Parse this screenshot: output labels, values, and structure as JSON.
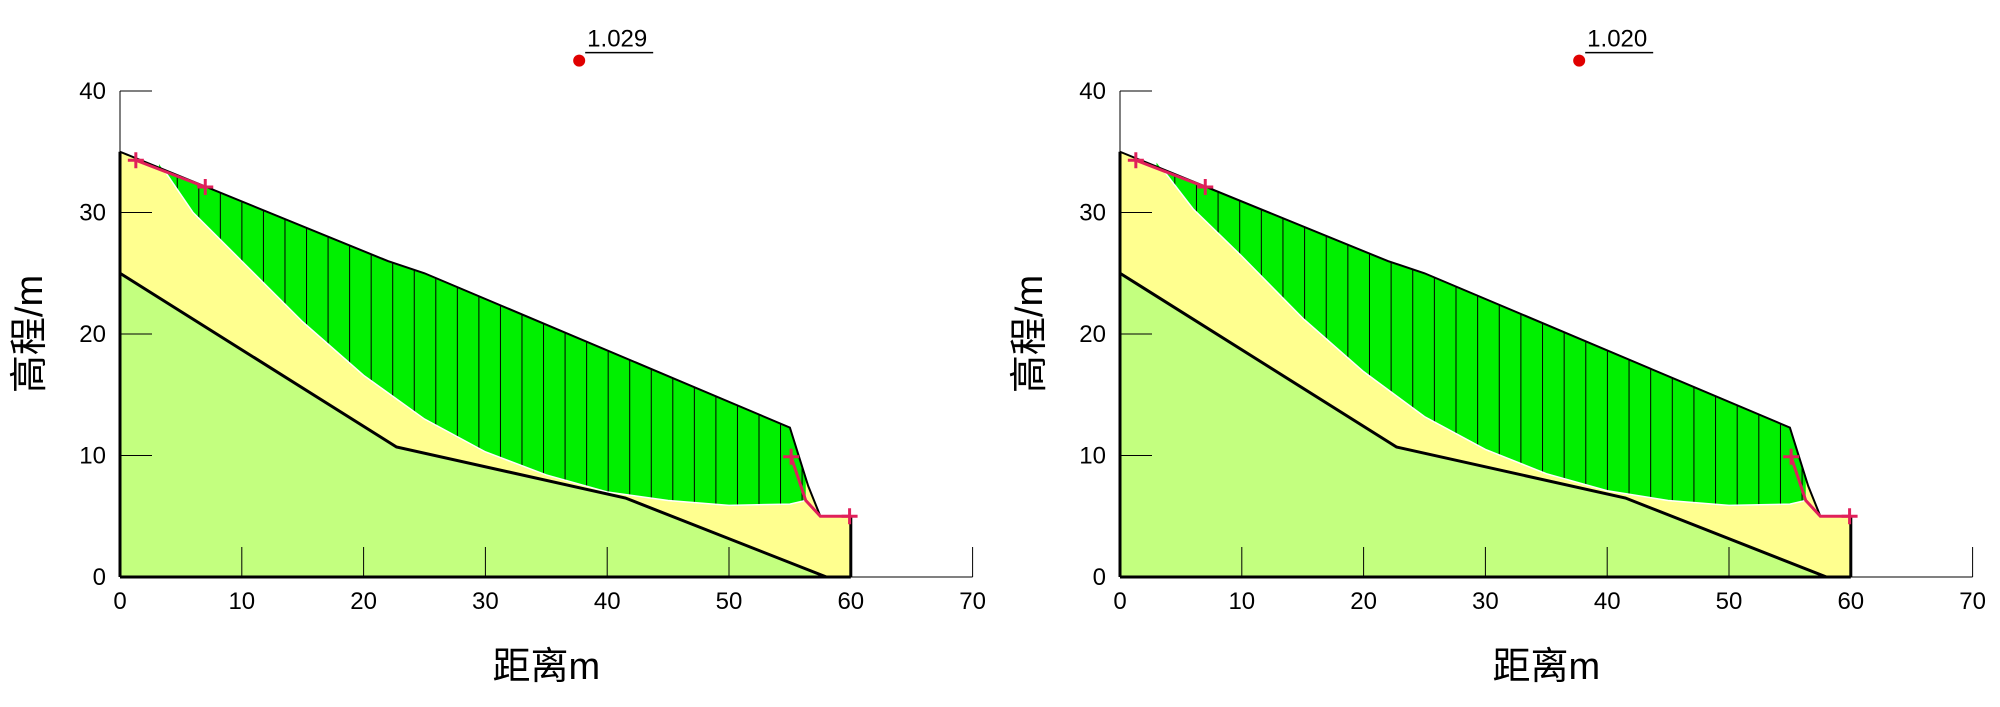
{
  "colors": {
    "lower_layer": "#c3ff7f",
    "upper_layer": "#ffff8f",
    "slip_mass": "#00f000",
    "slice_line": "#000000",
    "boundary": "#000000",
    "fos_point": "#e00000",
    "marker": "#e0205a"
  },
  "chart_data": [
    {
      "type": "slope-stability",
      "xlabel": "距离m",
      "ylabel": "高程/m",
      "xlim": [
        0,
        70
      ],
      "ylim": [
        0,
        40
      ],
      "xticks": [
        0,
        10,
        20,
        30,
        40,
        50,
        60,
        70
      ],
      "yticks": [
        0,
        10,
        20,
        30,
        40
      ],
      "factor_of_safety": "1.029",
      "critical_center": {
        "x": 37.7,
        "y": 42.5
      },
      "ground_surface": [
        [
          0,
          35
        ],
        [
          22,
          26
        ],
        [
          25,
          25
        ],
        [
          55,
          12.3
        ],
        [
          56.5,
          7.5
        ],
        [
          57.5,
          5
        ],
        [
          60,
          5
        ],
        [
          60,
          0
        ],
        [
          0,
          0
        ]
      ],
      "layer_boundary": [
        [
          0,
          25
        ],
        [
          22.7,
          10.7
        ],
        [
          41.5,
          6.5
        ],
        [
          58,
          0
        ]
      ],
      "slip_surface": [
        [
          3.2,
          34.1
        ],
        [
          6,
          30
        ],
        [
          10,
          26
        ],
        [
          15,
          21
        ],
        [
          20,
          16.6
        ],
        [
          25,
          13
        ],
        [
          30,
          10.3
        ],
        [
          35,
          8.4
        ],
        [
          40,
          7
        ],
        [
          45,
          6.3
        ],
        [
          50,
          5.9
        ],
        [
          55,
          6
        ],
        [
          56.3,
          6.3
        ]
      ],
      "slice_count": 30,
      "markers": [
        [
          1.3,
          34.3
        ],
        [
          7,
          32.1
        ],
        [
          55.1,
          9.9
        ],
        [
          59.9,
          5
        ]
      ]
    },
    {
      "type": "slope-stability",
      "xlabel": "距离m",
      "ylabel": "高程/m",
      "xlim": [
        0,
        70
      ],
      "ylim": [
        0,
        40
      ],
      "xticks": [
        0,
        10,
        20,
        30,
        40,
        50,
        60,
        70
      ],
      "yticks": [
        0,
        10,
        20,
        30,
        40
      ],
      "factor_of_safety": "1.020",
      "critical_center": {
        "x": 37.7,
        "y": 42.5
      },
      "ground_surface": [
        [
          0,
          35
        ],
        [
          22,
          26
        ],
        [
          25,
          25
        ],
        [
          55,
          12.3
        ],
        [
          56.5,
          7.5
        ],
        [
          57.5,
          5
        ],
        [
          60,
          5
        ],
        [
          60,
          0
        ],
        [
          0,
          0
        ]
      ],
      "layer_boundary": [
        [
          0,
          25
        ],
        [
          22.7,
          10.7
        ],
        [
          41.5,
          6.5
        ],
        [
          58,
          0
        ]
      ],
      "slip_surface": [
        [
          3.0,
          34.2
        ],
        [
          6,
          30.3
        ],
        [
          10,
          26.4
        ],
        [
          15,
          21.3
        ],
        [
          20,
          16.9
        ],
        [
          25,
          13.2
        ],
        [
          30,
          10.5
        ],
        [
          35,
          8.5
        ],
        [
          40,
          7.1
        ],
        [
          45,
          6.3
        ],
        [
          50,
          5.9
        ],
        [
          55,
          6
        ],
        [
          56.3,
          6.3
        ]
      ],
      "slice_count": 30,
      "markers": [
        [
          1.3,
          34.3
        ],
        [
          7,
          32.1
        ],
        [
          55.1,
          9.9
        ],
        [
          59.9,
          5
        ]
      ]
    }
  ]
}
